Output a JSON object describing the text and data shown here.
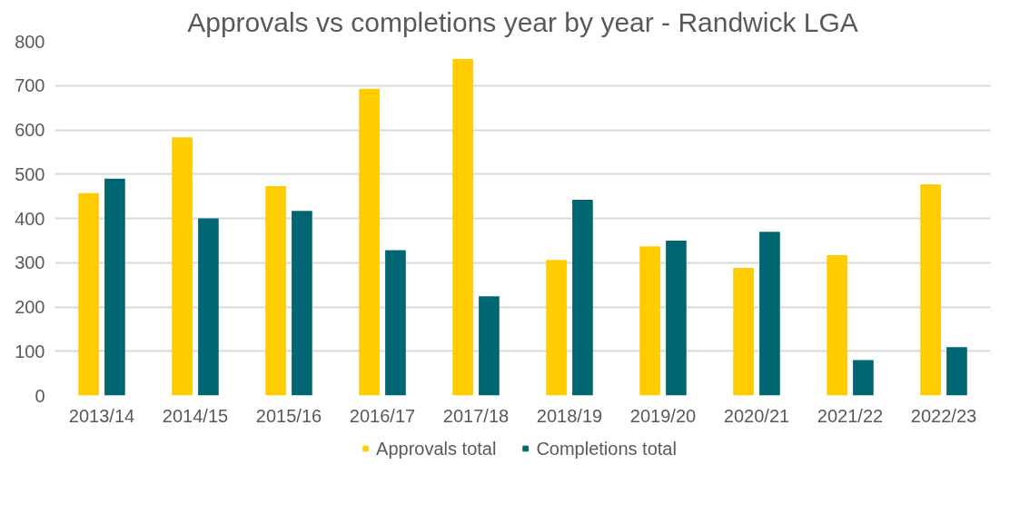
{
  "chart_data": {
    "type": "bar",
    "title": "Approvals vs completions year by year - Randwick LGA",
    "categories": [
      "2013/14",
      "2014/15",
      "2015/16",
      "2016/17",
      "2017/18",
      "2018/19",
      "2019/20",
      "2020/21",
      "2021/22",
      "2022/23"
    ],
    "series": [
      {
        "name": "Approvals total",
        "color": "#ffcc00",
        "values": [
          457,
          583,
          473,
          693,
          760,
          306,
          337,
          288,
          317,
          477
        ]
      },
      {
        "name": "Completions total",
        "color": "#006672",
        "values": [
          490,
          400,
          417,
          328,
          224,
          442,
          350,
          370,
          80,
          109
        ]
      }
    ],
    "ylim": [
      0,
      800
    ],
    "yticks": [
      0,
      100,
      200,
      300,
      400,
      500,
      600,
      700,
      800
    ],
    "grid": "y",
    "legend": "bottom"
  }
}
